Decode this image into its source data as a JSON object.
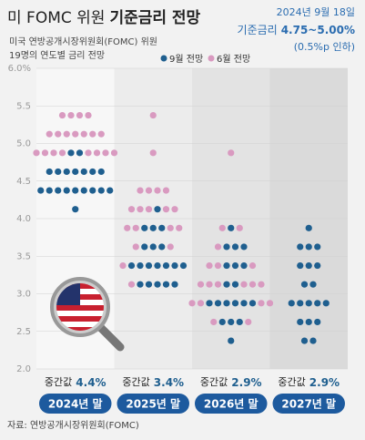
{
  "chart_data": {
    "type": "dot",
    "title": "미 FOMC 위원",
    "title_bold": "기준금리 전망",
    "subtitle": [
      "미국 연방공개시장위원회(FOMC) 위원",
      "19명의 연도별 금리 전망"
    ],
    "date": "2024년 9월 18일",
    "rate_label": "기준금리",
    "rate": "4.75~5.00%",
    "rate_note": "(0.5%p 인하)",
    "categories": [
      "2024년 말",
      "2025년 말",
      "2026년 말",
      "2027년 말"
    ],
    "column_colors": [
      "#f7f7f7",
      "#ececec",
      "#e3e3e3",
      "#dadada"
    ],
    "median_labels": [
      {
        "prefix": "중간값",
        "label": "4.4%"
      },
      {
        "prefix": "중간값",
        "label": "3.4%"
      },
      {
        "prefix": "중간값",
        "label": "2.9%"
      },
      {
        "prefix": "중간값",
        "label": "2.9%"
      }
    ],
    "series": [
      {
        "name": "9월 전망",
        "color": "#1f5f8f",
        "values": [
          [
            4.125,
            4.375,
            4.375,
            4.375,
            4.375,
            4.375,
            4.375,
            4.375,
            4.375,
            4.375,
            4.625,
            4.625,
            4.625,
            4.625,
            4.625,
            4.625,
            4.625,
            4.875,
            4.875
          ],
          [
            3.125,
            3.125,
            3.125,
            3.125,
            3.125,
            3.375,
            3.375,
            3.375,
            3.375,
            3.375,
            3.375,
            3.375,
            3.625,
            3.625,
            3.625,
            3.875,
            3.875,
            3.875,
            4.125
          ],
          [
            2.375,
            2.625,
            2.625,
            2.625,
            2.875,
            2.875,
            2.875,
            2.875,
            2.875,
            2.875,
            3.125,
            3.125,
            3.375,
            3.375,
            3.375,
            3.625,
            3.625,
            3.625,
            3.875
          ],
          [
            2.375,
            2.375,
            2.625,
            2.625,
            2.625,
            2.875,
            2.875,
            2.875,
            2.875,
            2.875,
            3.125,
            3.125,
            3.375,
            3.375,
            3.375,
            3.625,
            3.625,
            3.625,
            3.875
          ]
        ]
      },
      {
        "name": "6월 전망",
        "color": "#d99ac0",
        "values": [
          [
            4.875,
            4.875,
            4.875,
            4.875,
            4.875,
            4.875,
            4.875,
            4.875,
            5.125,
            5.125,
            5.125,
            5.125,
            5.125,
            5.125,
            5.125,
            5.375,
            5.375,
            5.375,
            5.375
          ],
          [
            3.125,
            3.375,
            3.625,
            3.625,
            3.875,
            3.875,
            3.875,
            3.875,
            4.125,
            4.125,
            4.125,
            4.125,
            4.125,
            4.375,
            4.375,
            4.375,
            4.375,
            4.875,
            5.375
          ],
          [
            2.625,
            2.625,
            2.875,
            2.875,
            2.875,
            2.875,
            3.125,
            3.125,
            3.125,
            3.125,
            3.125,
            3.125,
            3.375,
            3.375,
            3.375,
            3.625,
            3.875,
            3.875,
            4.875
          ],
          []
        ]
      }
    ],
    "ylim": [
      2,
      6
    ],
    "yticks": [
      {
        "value": 6,
        "label": "6.0%"
      },
      5.5,
      {
        "value": 5,
        "label": "5.0"
      },
      4.5,
      {
        "value": 4,
        "label": "4.0"
      },
      3.5,
      {
        "value": 3,
        "label": "3.0"
      },
      2.5,
      {
        "value": 2,
        "label": "2.0"
      }
    ],
    "grid": true,
    "source": "자료: 연방공개시장위원회(FOMC)"
  }
}
